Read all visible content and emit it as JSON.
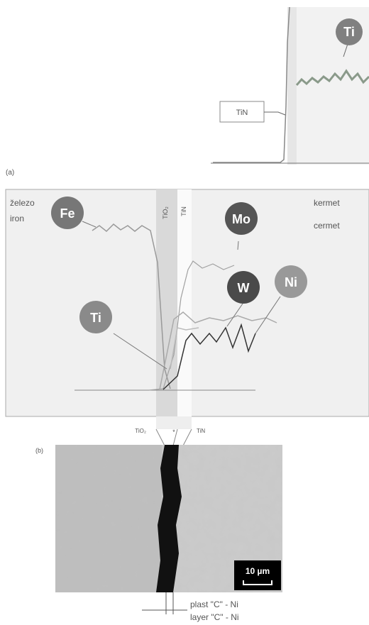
{
  "top_panel": {
    "layer_label": "TiN",
    "element": "Ti"
  },
  "panel_a": {
    "label": "(a)",
    "left_label_1": "železo",
    "left_label_2": "iron",
    "right_label_1": "kermet",
    "right_label_2": "cermet",
    "elements": [
      "Fe",
      "Mo",
      "W",
      "Ni",
      "Ti"
    ],
    "band_label_1": "TiO₂",
    "band_label_2": "TiN",
    "bottom_label_1": "TiO₂",
    "bottom_label_2": "*",
    "bottom_label_3": "TiN"
  },
  "panel_b": {
    "label": "(b)",
    "scale_bar": "10 µm",
    "caption_1": "plast \"C\" - Ni",
    "caption_2": "layer \"C\" - Ni"
  }
}
